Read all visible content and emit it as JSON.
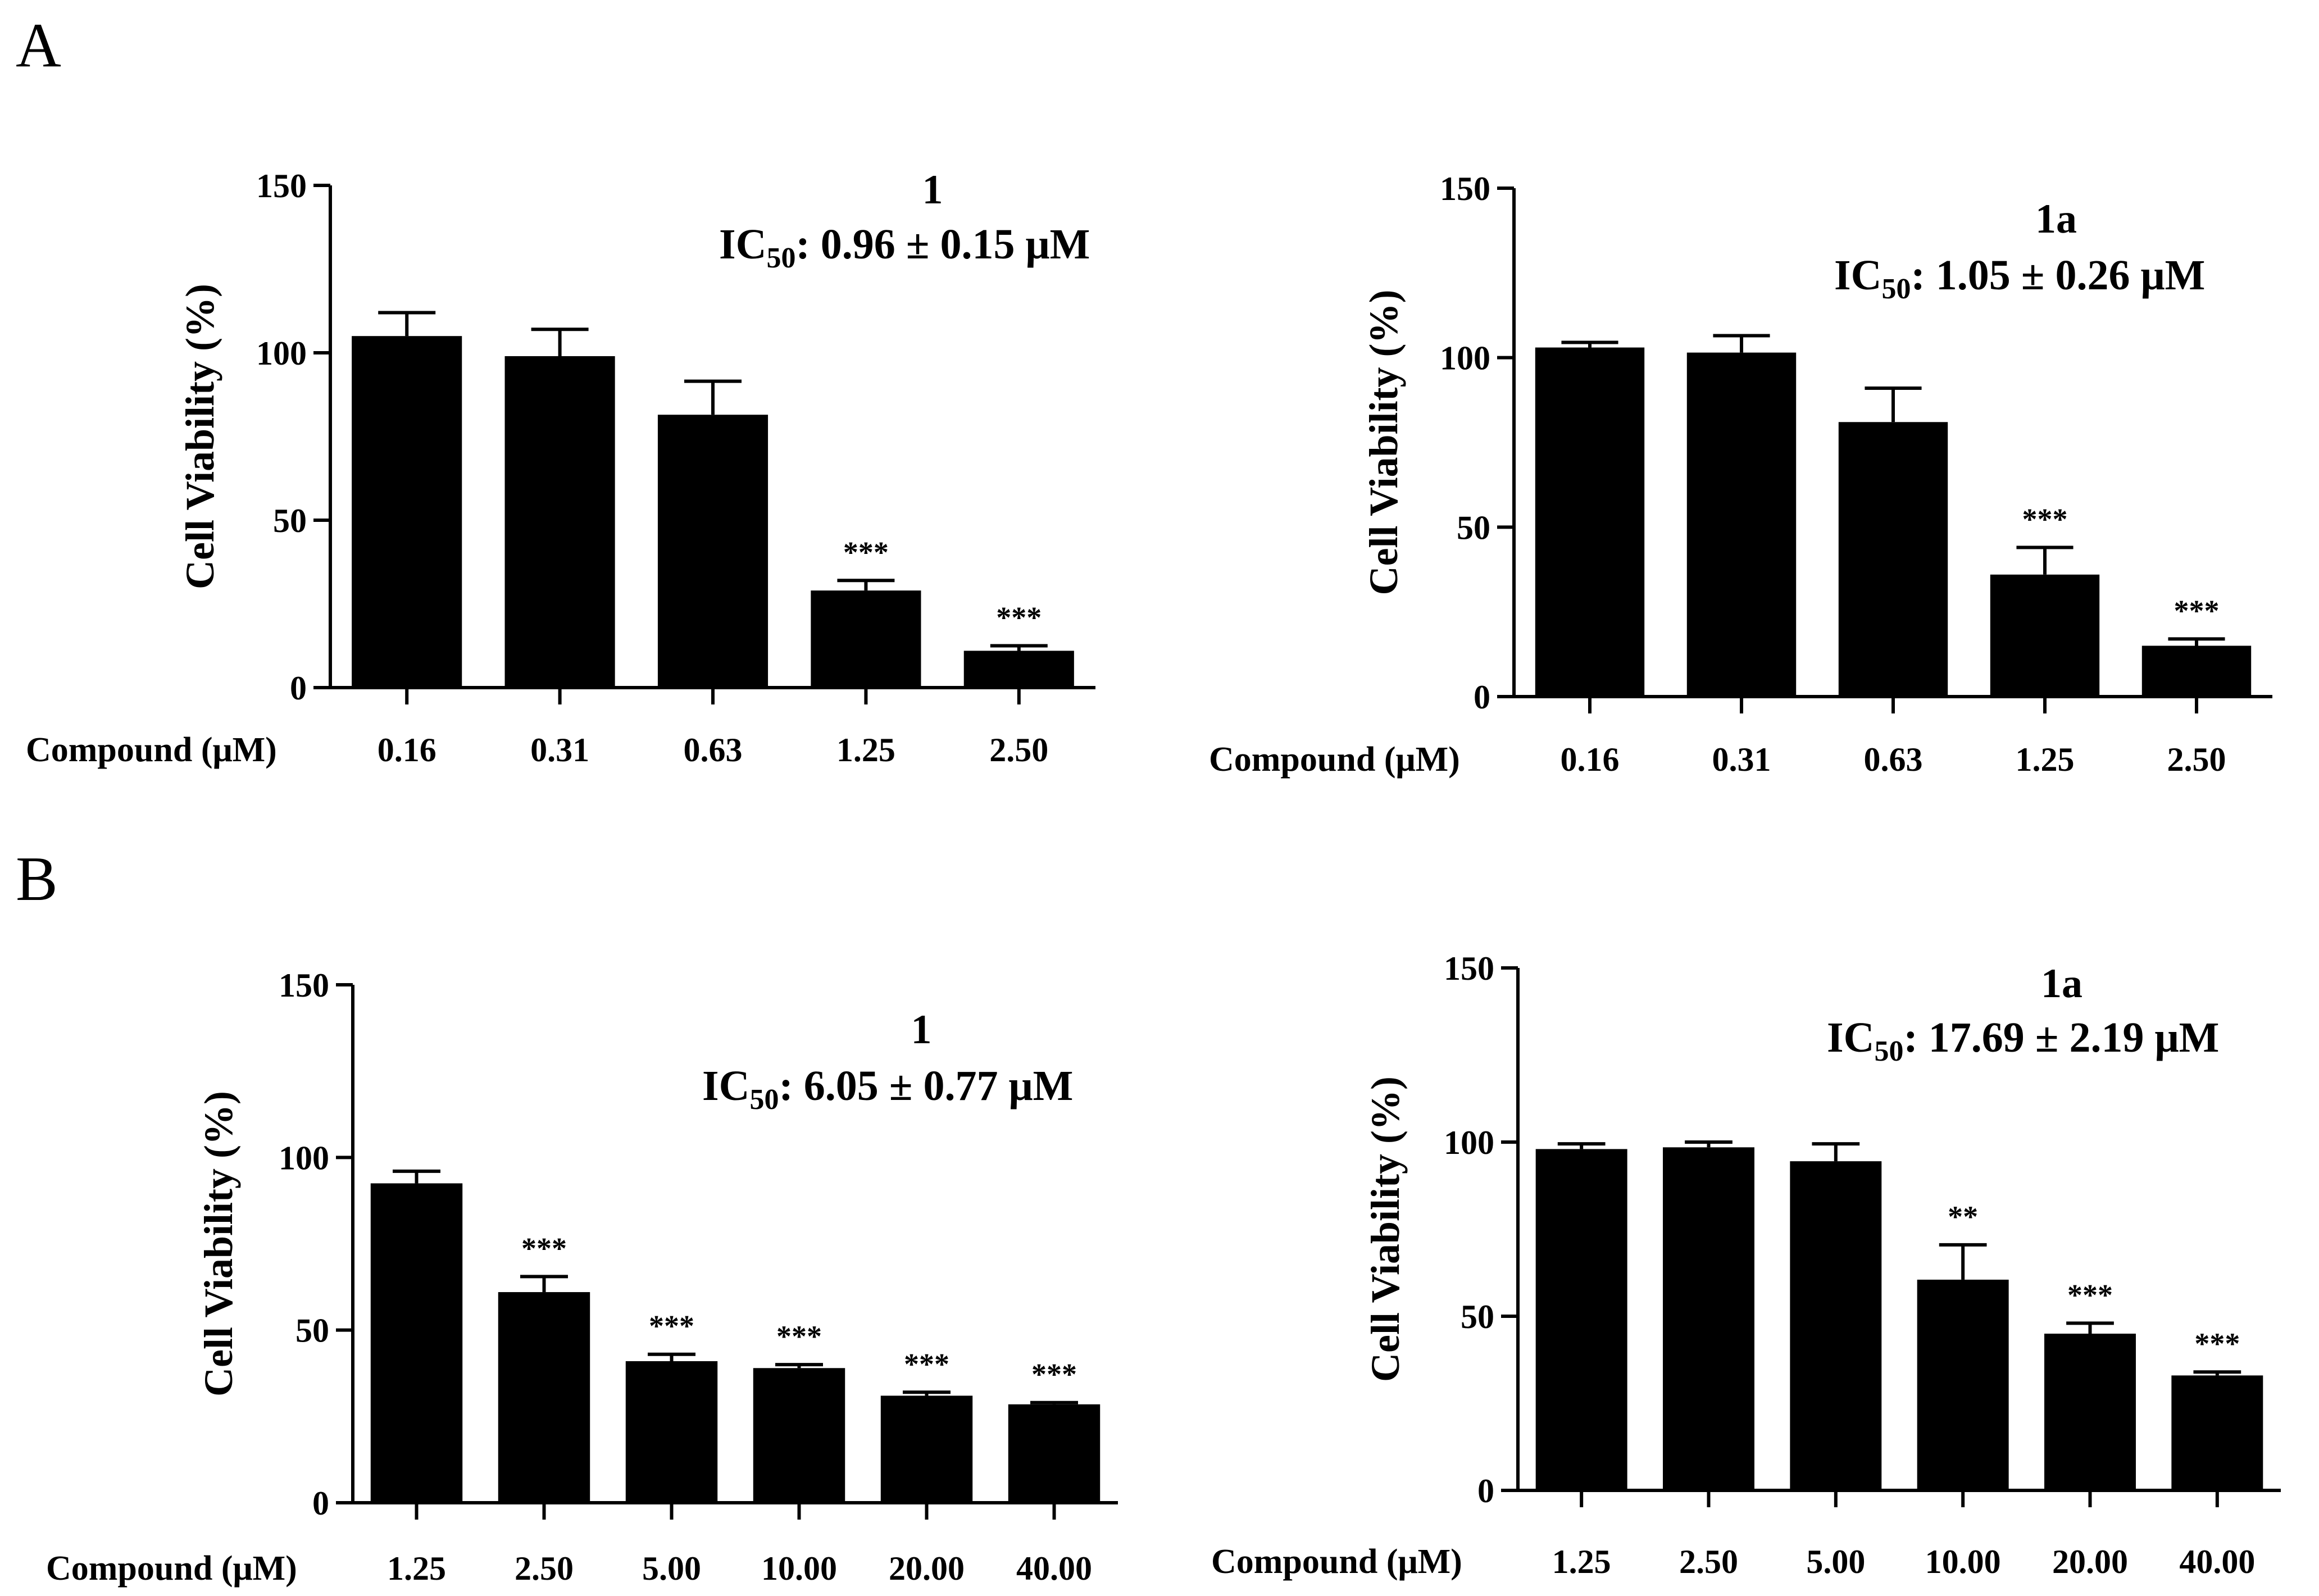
{
  "panels": [
    {
      "letter": "A"
    },
    {
      "letter": "B"
    }
  ],
  "chart_data": [
    {
      "type": "bar",
      "panel": "A",
      "title": "1",
      "ic50": {
        "prefix": "IC",
        "sub": "50",
        "text": ": 0.96 ±  0.15 μM"
      },
      "xlabel": "Compound (μM)",
      "ylabel": "Cell Viability (%)",
      "ylim": [
        0,
        150
      ],
      "yticks": [
        "0",
        "50",
        "100",
        "150"
      ],
      "categories": [
        "0.16",
        "0.31",
        "0.63",
        "1.25",
        "2.50"
      ],
      "values": [
        105,
        99,
        81.5,
        29,
        11
      ],
      "errors": [
        7,
        8,
        10,
        3,
        1.5
      ],
      "significance": [
        "",
        "",
        "",
        "***",
        "***"
      ],
      "bar_color": "#000000"
    },
    {
      "type": "bar",
      "panel": "A",
      "title": "1a",
      "ic50": {
        "prefix": "IC",
        "sub": "50",
        "text": ": 1.05  ± 0.26 μM"
      },
      "xlabel": "Compound (μM)",
      "ylabel": "Cell Viability (%)",
      "ylim": [
        0,
        150
      ],
      "yticks": [
        "0",
        "50",
        "100",
        "150"
      ],
      "categories": [
        "0.16",
        "0.31",
        "0.63",
        "1.25",
        "2.50"
      ],
      "values": [
        103,
        101.5,
        81,
        36,
        15
      ],
      "errors": [
        1.5,
        5,
        10,
        8,
        2
      ],
      "significance": [
        "",
        "",
        "",
        "***",
        "***"
      ],
      "bar_color": "#000000"
    },
    {
      "type": "bar",
      "panel": "B",
      "title": "1",
      "ic50": {
        "prefix": "IC",
        "sub": "50",
        "text": ": 6.05  ± 0.77 μM"
      },
      "xlabel": "Compound (μM)",
      "ylabel": "Cell Viability (%)",
      "ylim": [
        0,
        150
      ],
      "yticks": [
        "0",
        "50",
        "100",
        "150"
      ],
      "categories": [
        "1.25",
        "2.50",
        "5.00",
        "10.00",
        "20.00",
        "40.00"
      ],
      "values": [
        92.5,
        61,
        41,
        39,
        31,
        28.5
      ],
      "errors": [
        3.5,
        4.5,
        2,
        1,
        1,
        0.5
      ],
      "significance": [
        "",
        "***",
        "***",
        "***",
        "***",
        "***"
      ],
      "bar_color": "#000000"
    },
    {
      "type": "bar",
      "panel": "B",
      "title": "1a",
      "ic50": {
        "prefix": "IC",
        "sub": "50",
        "text": ": 17.69  ± 2.19 μM"
      },
      "xlabel": "Compound (μM)",
      "ylabel": "Cell Viability (%)",
      "ylim": [
        0,
        150
      ],
      "yticks": [
        "0",
        "50",
        "100",
        "150"
      ],
      "categories": [
        "1.25",
        "2.50",
        "5.00",
        "10.00",
        "20.00",
        "40.00"
      ],
      "values": [
        98,
        98.5,
        94.5,
        60.5,
        45,
        33
      ],
      "errors": [
        1.5,
        1.5,
        5,
        10,
        3,
        1
      ],
      "significance": [
        "",
        "",
        "",
        "**",
        "***",
        "***"
      ],
      "bar_color": "#000000"
    }
  ]
}
